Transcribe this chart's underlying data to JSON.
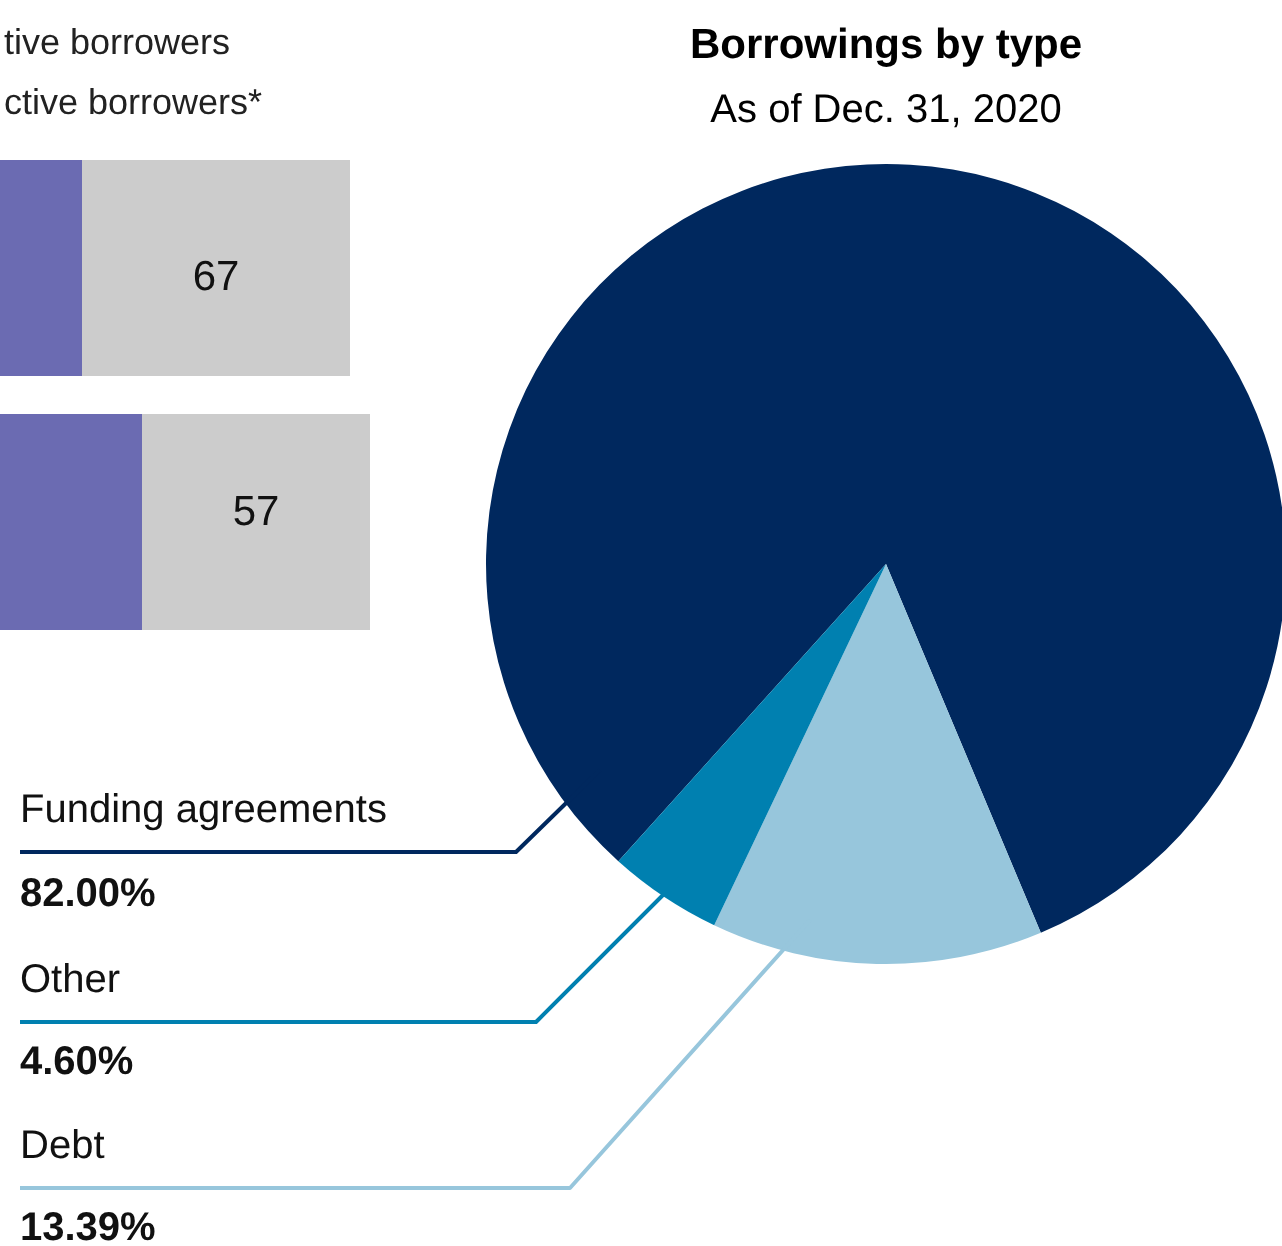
{
  "chart_data": [
    {
      "type": "bar",
      "orientation": "horizontal",
      "stacked": true,
      "categories": [
        null,
        null
      ],
      "series": [
        {
          "name": "tive borrowers",
          "color": "#6b6bb2",
          "values": [
            33,
            48
          ]
        },
        {
          "name": "ctive borrowers*",
          "color": "#cccccc",
          "values": [
            67,
            57
          ],
          "value_labels": [
            "67",
            "57"
          ]
        }
      ],
      "legend": "top"
    },
    {
      "type": "pie",
      "title": "Borrowings by type",
      "subtitle": "As of Dec. 31, 2020",
      "categories": [
        "Funding agreements",
        "Debt",
        "Other"
      ],
      "values": [
        82.0,
        13.39,
        4.6
      ],
      "colors": [
        "#00285e",
        "#97c6dc",
        "#0080b0"
      ],
      "value_labels": [
        "82.00%",
        "13.39%",
        "4.60%"
      ]
    }
  ]
}
